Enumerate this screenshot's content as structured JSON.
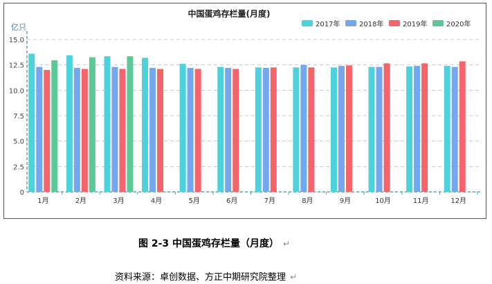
{
  "chart_data": {
    "type": "bar",
    "title": "中国蛋鸡存栏量(月度)",
    "ylabel": "亿只",
    "ylim": [
      0,
      15
    ],
    "yticks": [
      "0",
      "2.5",
      "5.0",
      "7.5",
      "10.0",
      "12.5",
      "15.0"
    ],
    "grid": true,
    "legend_position": "top-right",
    "categories": [
      "1月",
      "2月",
      "3月",
      "4月",
      "5月",
      "6月",
      "7月",
      "8月",
      "9月",
      "10月",
      "11月",
      "12月"
    ],
    "series": [
      {
        "name": "2017年",
        "color": "#4dd2dc",
        "values": [
          13.6,
          13.45,
          13.35,
          13.2,
          12.6,
          12.3,
          12.25,
          12.25,
          12.25,
          12.3,
          12.35,
          12.4
        ]
      },
      {
        "name": "2018年",
        "color": "#74a7ee",
        "values": [
          12.3,
          12.2,
          12.3,
          12.2,
          12.2,
          12.2,
          12.2,
          12.5,
          12.4,
          12.3,
          12.4,
          12.3
        ]
      },
      {
        "name": "2019年",
        "color": "#f3646b",
        "values": [
          12.0,
          12.1,
          12.1,
          12.1,
          12.1,
          12.1,
          12.25,
          12.25,
          12.45,
          12.65,
          12.65,
          12.85
        ]
      },
      {
        "name": "2020年",
        "color": "#5cc897",
        "values": [
          12.95,
          13.25,
          13.35,
          null,
          null,
          null,
          null,
          null,
          null,
          null,
          null,
          null
        ]
      }
    ]
  },
  "caption": {
    "figure_title": "图 2-3  中国蛋鸡存栏量（月度）",
    "source": "资料来源：卓创数据、方正中期研究院整理"
  }
}
